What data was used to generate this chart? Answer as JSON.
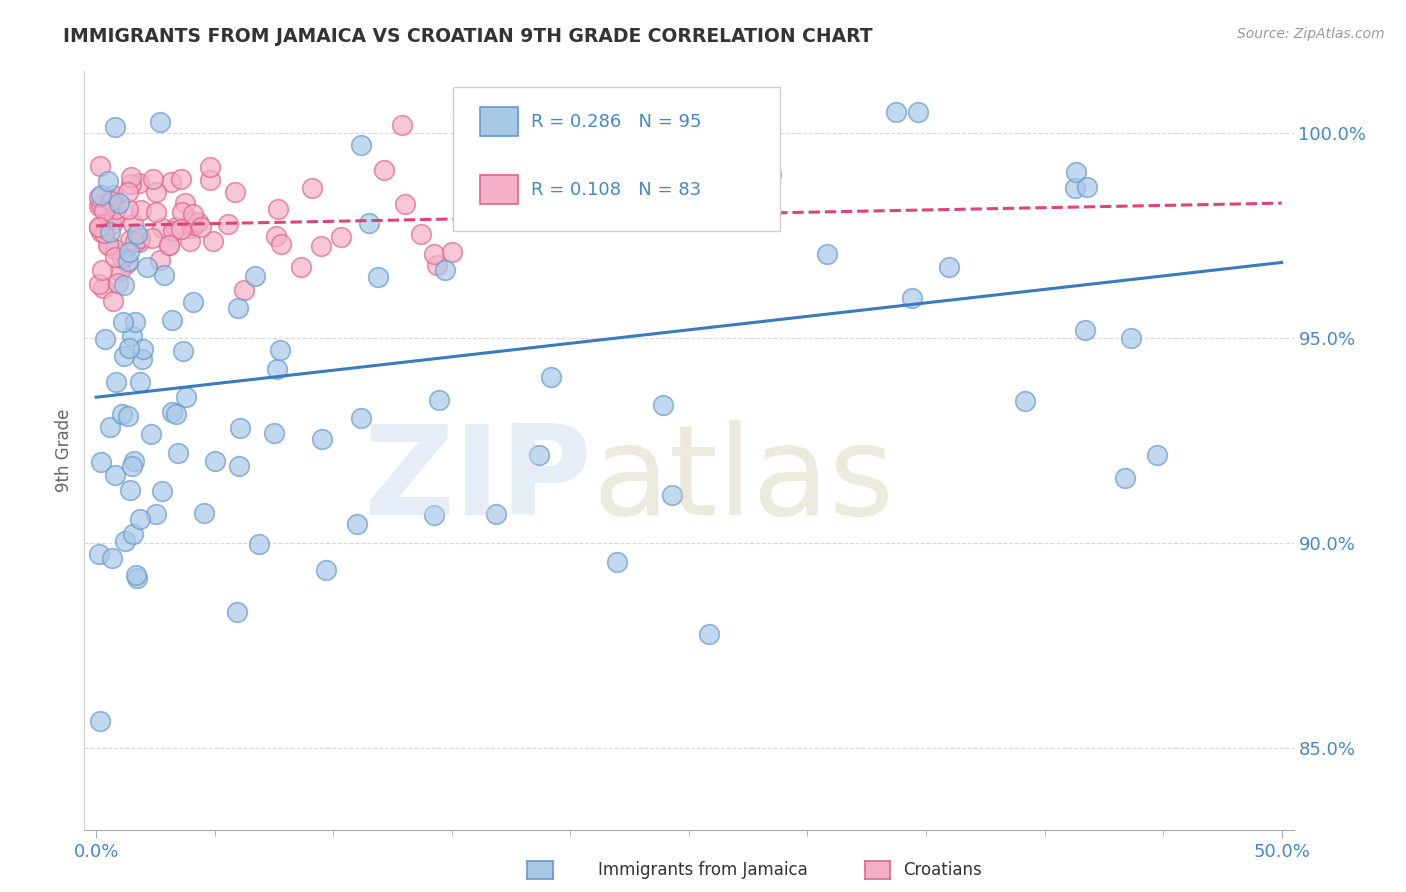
{
  "title": "IMMIGRANTS FROM JAMAICA VS CROATIAN 9TH GRADE CORRELATION CHART",
  "source_text": "Source: ZipAtlas.com",
  "ylabel": "9th Grade",
  "xlim": [
    0.0,
    50.0
  ],
  "ylim": [
    83.0,
    101.5
  ],
  "yticks": [
    85.0,
    90.0,
    95.0,
    100.0
  ],
  "ytick_labels": [
    "85.0%",
    "90.0%",
    "95.0%",
    "100.0%"
  ],
  "xtick_labels": [
    "0.0%",
    "50.0%"
  ],
  "blue_color": "#a8c8e8",
  "blue_edge": "#6699cc",
  "pink_color": "#f4b0c8",
  "pink_edge": "#dd6688",
  "blue_line_color": "#3a7abf",
  "pink_line_color": "#dd4477",
  "grid_color": "#cccccc",
  "legend_R_blue": "R = 0.286",
  "legend_N_blue": "N = 95",
  "legend_R_pink": "R = 0.108",
  "legend_N_pink": "N = 83",
  "title_color": "#333333",
  "source_color": "#999999",
  "axis_label_color": "#4488cc",
  "ylabel_color": "#666666"
}
